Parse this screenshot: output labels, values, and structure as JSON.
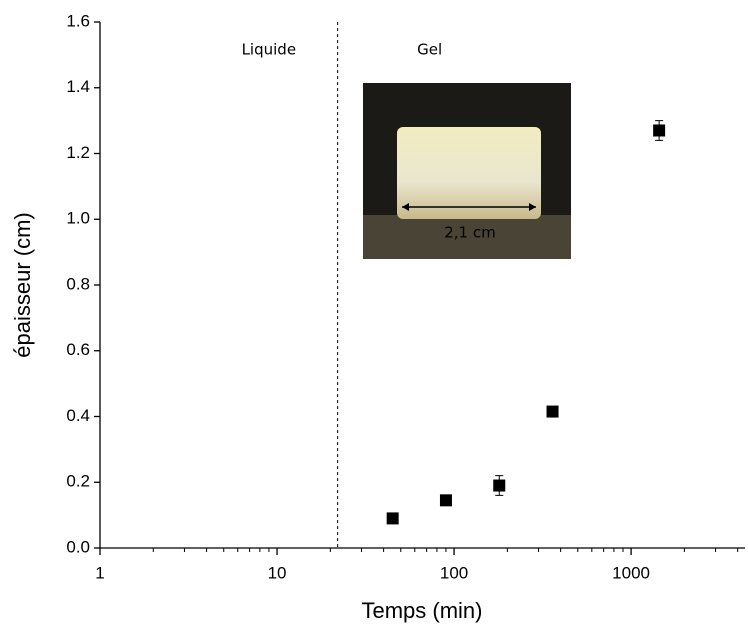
{
  "chart_data": {
    "type": "scatter",
    "x_label": "Temps (min)",
    "y_label": "épaisseur (cm)",
    "x": [
      45,
      90,
      180,
      360,
      1440
    ],
    "values": [
      0.09,
      0.145,
      0.19,
      0.415,
      1.27
    ],
    "errors": [
      0.01,
      0.01,
      0.03,
      0.01,
      0.03
    ],
    "color": "#000000",
    "xlog": true,
    "xlim": [
      1,
      4400
    ],
    "xticks": [
      1,
      10,
      100,
      1000
    ],
    "ylim": [
      0,
      1.6
    ],
    "yticks": [
      {
        "value": 0,
        "label": "0.0"
      },
      0.2,
      0.4,
      0.6,
      0.8,
      {
        "value": 1,
        "label": "1.0"
      },
      1.2,
      1.4,
      1.6
    ],
    "vline": 22,
    "annotations": [
      "Liquide",
      "Gel"
    ],
    "inset_label": "2,1 cm"
  }
}
